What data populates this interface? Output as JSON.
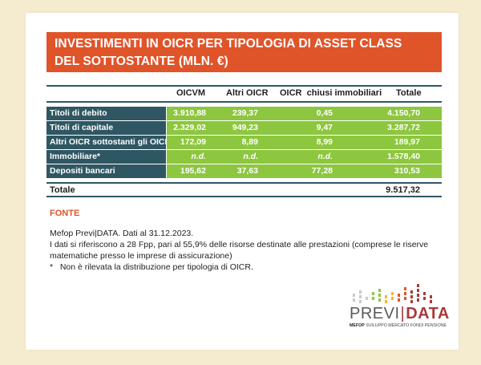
{
  "title": {
    "line1": "INVESTIMENTI IN OICR PER TIPOLOGIA DI ASSET CLASS",
    "line2": "DEL SOTTOSTANTE (MLN. €)"
  },
  "colors": {
    "background": "#f5ecd0",
    "title_bar": "#e0542a",
    "label_cell": "#2f5763",
    "value_cell": "#8dc63f",
    "accent_red": "#a83a3a"
  },
  "table": {
    "columns": [
      "OICVM",
      "Altri OICR",
      "OICR  chiusi immobiliari",
      "Totale"
    ],
    "rows": [
      {
        "label": "Titoli di debito",
        "values": [
          "3.910,88",
          "239,37",
          "0,45",
          "4.150,70"
        ]
      },
      {
        "label": "Titoli di capitale",
        "values": [
          "2.329,02",
          "949,23",
          "9,47",
          "3.287,72"
        ]
      },
      {
        "label": "Altri OICR sottostanti gli OICR",
        "values": [
          "172,09",
          "8,89",
          "8,99",
          "189,97"
        ]
      },
      {
        "label": "Immobiliare*",
        "values": [
          "n.d.",
          "n.d.",
          "n.d.",
          "1.578,40"
        ]
      },
      {
        "label": "Depositi bancari",
        "values": [
          "195,62",
          "37,63",
          "77,28",
          "310,53"
        ]
      }
    ],
    "total": {
      "label": "Totale",
      "value": "9.517,32"
    }
  },
  "source": {
    "heading": "FONTE",
    "lines": [
      "Mefop Previ|DATA. Dati al 31.12.2023.",
      "I dati si riferiscono a 28 Fpp, pari al 55,9% delle risorse destinate alle prestazioni (comprese le riserve matematiche presso le imprese di assicurazione)",
      "*   Non è rilevata la distribuzione per tipologia di OICR."
    ]
  },
  "logo": {
    "word_left": "PREVI",
    "separator": "|",
    "word_right": "DATA",
    "sub_bold": "MEFOP",
    "sub_text": "SVILUPPO MERCATO FONDI PENSIONE"
  }
}
